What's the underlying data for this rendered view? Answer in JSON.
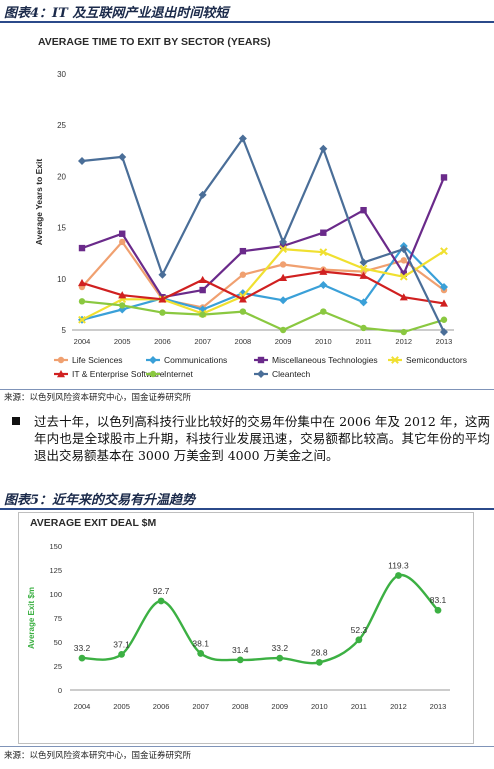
{
  "figure4": {
    "label": "图表4：IT 及互联网产业退出时间较短"
  },
  "figure5": {
    "label": "图表5：近年来的交易有升温趋势"
  },
  "source_text": "来源：以色列风险资本研究中心，国金证券研究所",
  "paragraph": "过去十年，以色列高科技行业比较好的交易年份集中在 2006 年及 2012 年，这两年内也是全球股市上升期，科技行业发展迅速，交易额都比较高。其它年份的平均退出交易额基本在 3000 万美金到 4000 万美金之间。",
  "chart_data": [
    {
      "type": "line",
      "title": "AVERAGE TIME TO EXIT BY SECTOR (YEARS)",
      "xlabel": "",
      "ylabel": "Average Years to Exit",
      "categories": [
        "2004",
        "2005",
        "2006",
        "2007",
        "2008",
        "2009",
        "2010",
        "2011",
        "2012",
        "2013"
      ],
      "ylim": [
        5,
        30
      ],
      "yticks": [
        5,
        10,
        15,
        20,
        25,
        30
      ],
      "grid": false,
      "legend": "bottom",
      "series": [
        {
          "name": "Life Sciences",
          "color": "#f0a070",
          "marker": "circle",
          "values": [
            9.2,
            13.6,
            8.0,
            7.2,
            10.4,
            11.4,
            10.9,
            10.7,
            11.8,
            8.9
          ]
        },
        {
          "name": "Communications",
          "color": "#3aa0d8",
          "marker": "diamond",
          "values": [
            6.0,
            7.0,
            8.1,
            7.0,
            8.6,
            7.9,
            9.4,
            7.7,
            13.2,
            9.2
          ]
        },
        {
          "name": "Miscellaneous Technologies",
          "color": "#6a2a8a",
          "marker": "square",
          "values": [
            13.0,
            14.4,
            8.2,
            8.9,
            12.7,
            13.2,
            14.5,
            16.7,
            10.5,
            19.9
          ]
        },
        {
          "name": "Semiconductors",
          "color": "#f0e030",
          "marker": "x",
          "values": [
            6.0,
            8.0,
            8.0,
            6.6,
            8.3,
            12.9,
            12.6,
            11.0,
            10.2,
            12.7
          ]
        },
        {
          "name": "IT & Enterprise Software",
          "color": "#d02020",
          "marker": "triangle",
          "values": [
            9.6,
            8.4,
            8.0,
            9.9,
            8.0,
            10.1,
            10.7,
            10.3,
            8.2,
            7.6
          ]
        },
        {
          "name": "Internet",
          "color": "#8ac840",
          "marker": "circle",
          "values": [
            7.8,
            7.4,
            6.7,
            6.5,
            6.8,
            5.0,
            6.8,
            5.2,
            4.8,
            6.0
          ]
        },
        {
          "name": "Cleantech",
          "color": "#4a6e98",
          "marker": "diamond",
          "values": [
            21.5,
            21.9,
            10.4,
            18.2,
            23.7,
            13.6,
            22.7,
            11.6,
            12.9,
            4.8
          ]
        }
      ]
    },
    {
      "type": "line",
      "title": "AVERAGE EXIT DEAL $M",
      "xlabel": "",
      "ylabel": "Average Exit $m",
      "categories": [
        "2004",
        "2005",
        "2006",
        "2007",
        "2008",
        "2009",
        "2010",
        "2011",
        "2012",
        "2013"
      ],
      "ylim": [
        0,
        150
      ],
      "yticks": [
        0,
        25,
        50,
        75,
        100,
        125,
        150
      ],
      "grid": false,
      "legend": "none",
      "color": "#3cb043",
      "values": [
        33.2,
        37.1,
        92.7,
        38.1,
        31.4,
        33.2,
        28.8,
        52.3,
        119.3,
        83.1
      ],
      "data_labels": [
        "33.2",
        "37.1",
        "92.7",
        "38.1",
        "31.4",
        "33.2",
        "28.8",
        "52.3",
        "119.3",
        "83.1"
      ]
    }
  ]
}
